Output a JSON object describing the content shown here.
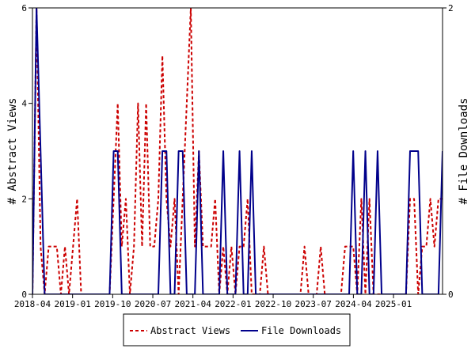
{
  "chart_data": {
    "type": "line",
    "xlabel": "",
    "ylabel_left": "# Abstract Views",
    "ylabel_right": "# File Downloads",
    "x_ticks": [
      "2018-04",
      "2019-01",
      "2019-10",
      "2020-07",
      "2021-04",
      "2022-01",
      "2022-10",
      "2023-07",
      "2024-04",
      "2025-01"
    ],
    "x_range": [
      "2018-04",
      "2025-12"
    ],
    "ylim_left": [
      0,
      6
    ],
    "ylim_right": [
      0,
      2
    ],
    "y_ticks_left": [
      0,
      2,
      4,
      6
    ],
    "y_ticks_right": [
      0,
      2
    ],
    "grid": false,
    "legend_position": "bottom",
    "series": [
      {
        "name": "Abstract Views",
        "axis": "left",
        "color": "#cc0000",
        "style": "dashed",
        "values": [
          0,
          6,
          1,
          0,
          1,
          1,
          1,
          0,
          1,
          0,
          1,
          2,
          0,
          0,
          0,
          0,
          0,
          0,
          0,
          0,
          2,
          4,
          1,
          2,
          0,
          1,
          4,
          1,
          4,
          1,
          1,
          2,
          5,
          2,
          1,
          2,
          0,
          2,
          4,
          6,
          1,
          3,
          1,
          1,
          1,
          2,
          0,
          1,
          0,
          1,
          0,
          1,
          1,
          2,
          0,
          0,
          0,
          1,
          0,
          0,
          0,
          0,
          0,
          0,
          0,
          0,
          0,
          1,
          0,
          0,
          0,
          1,
          0,
          0,
          0,
          0,
          0,
          1,
          1,
          1,
          0,
          2,
          0,
          2,
          0,
          0,
          0,
          0,
          0,
          0,
          0,
          0,
          0,
          2,
          2,
          0,
          1,
          1,
          2,
          1,
          2,
          2
        ]
      },
      {
        "name": "File Downloads",
        "axis": "right",
        "color": "#00008b",
        "style": "solid",
        "values": [
          0,
          2,
          1,
          0,
          0,
          0,
          0,
          0,
          0,
          0,
          0,
          0,
          0,
          0,
          0,
          0,
          0,
          0,
          0,
          0,
          1,
          1,
          0,
          0,
          0,
          0,
          0,
          0,
          0,
          0,
          0,
          0,
          1,
          1,
          0,
          0,
          1,
          1,
          0,
          0,
          0,
          1,
          0,
          0,
          0,
          0,
          0,
          1,
          0,
          0,
          0,
          1,
          0,
          0,
          1,
          0,
          0,
          0,
          0,
          0,
          0,
          0,
          0,
          0,
          0,
          0,
          0,
          0,
          0,
          0,
          0,
          0,
          0,
          0,
          0,
          0,
          0,
          0,
          0,
          1,
          0,
          0,
          1,
          0,
          0,
          1,
          0,
          0,
          0,
          0,
          0,
          0,
          0,
          1,
          1,
          1,
          0,
          0,
          0,
          0,
          0,
          1
        ]
      }
    ]
  }
}
